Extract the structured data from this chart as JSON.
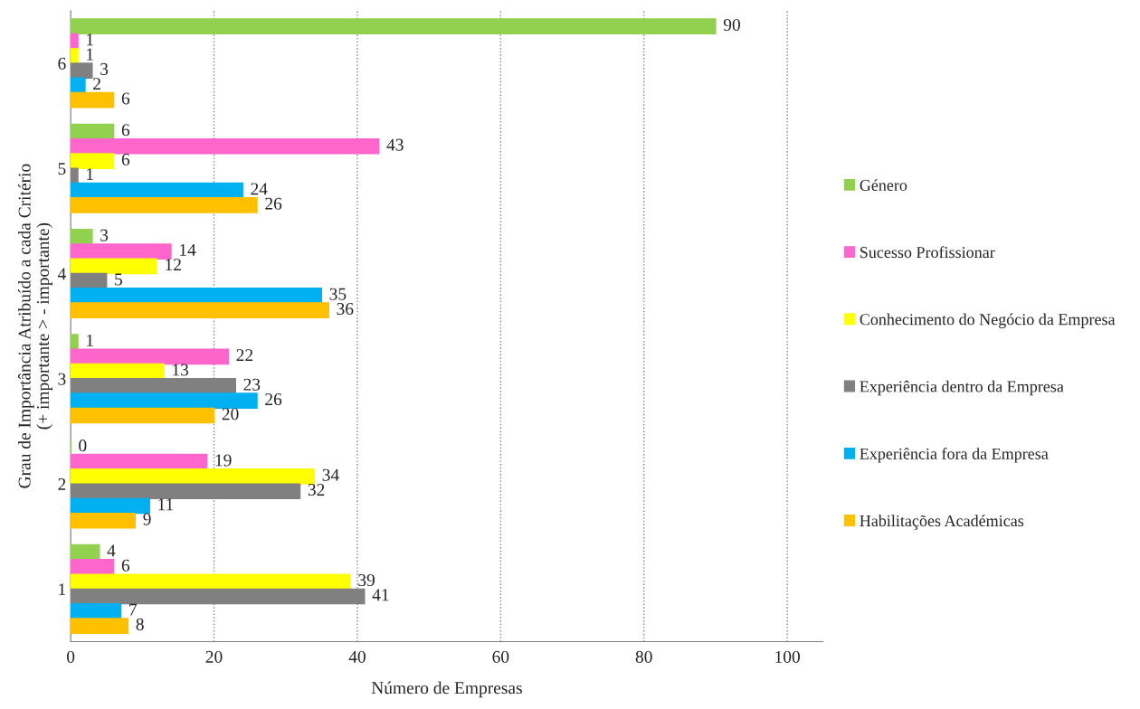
{
  "chart_data": {
    "type": "bar",
    "orientation": "horizontal",
    "xlabel": "Número de Empresas",
    "ylabel": "Grau de Importância Atribuído a cada Critério\n(+ importante > - importante)",
    "categories": [
      "6",
      "5",
      "4",
      "3",
      "2",
      "1"
    ],
    "series": [
      {
        "name": "Género",
        "color": "#92d050",
        "values": [
          90,
          6,
          3,
          1,
          0,
          4
        ]
      },
      {
        "name": "Sucesso Profissionar",
        "color": "#ff66cc",
        "values": [
          1,
          43,
          14,
          22,
          19,
          6
        ]
      },
      {
        "name": "Conhecimento do Negócio da Empresa",
        "color": "#ffff00",
        "values": [
          1,
          6,
          12,
          13,
          34,
          39
        ]
      },
      {
        "name": "Experiência dentro da Empresa",
        "color": "#808080",
        "values": [
          3,
          1,
          5,
          23,
          32,
          41
        ]
      },
      {
        "name": "Experiência fora da Empresa",
        "color": "#00b0f0",
        "values": [
          2,
          24,
          35,
          26,
          11,
          7
        ]
      },
      {
        "name": "Habilitações Académicas",
        "color": "#ffc000",
        "values": [
          6,
          26,
          36,
          20,
          9,
          8
        ]
      }
    ],
    "xlim": [
      0,
      105
    ],
    "xticks": [
      0,
      20,
      40,
      60,
      80,
      100
    ],
    "grid": "x",
    "legend": "right",
    "data_labels": true
  }
}
